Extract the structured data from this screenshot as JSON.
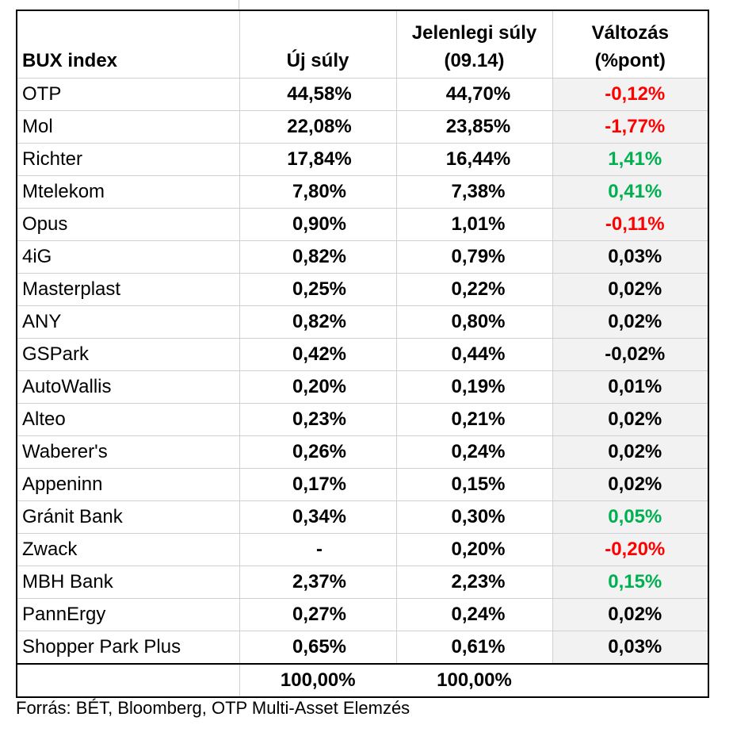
{
  "header": {
    "name": "BUX index",
    "new_weight": "Új súly",
    "current_weight_line1": "Jelenlegi súly",
    "current_weight_line2": "(09.14)",
    "change_line1": "Változás",
    "change_line2": "(%pont)"
  },
  "rows": [
    {
      "name": "OTP",
      "new": "44,58%",
      "current": "44,70%",
      "change": "-0,12%",
      "change_color": "#ff0000"
    },
    {
      "name": "Mol",
      "new": "22,08%",
      "current": "23,85%",
      "change": "-1,77%",
      "change_color": "#ff0000"
    },
    {
      "name": "Richter",
      "new": "17,84%",
      "current": "16,44%",
      "change": "1,41%",
      "change_color": "#00b050"
    },
    {
      "name": "Mtelekom",
      "new": "7,80%",
      "current": "7,38%",
      "change": "0,41%",
      "change_color": "#00b050"
    },
    {
      "name": "Opus",
      "new": "0,90%",
      "current": "1,01%",
      "change": "-0,11%",
      "change_color": "#ff0000"
    },
    {
      "name": "4iG",
      "new": "0,82%",
      "current": "0,79%",
      "change": "0,03%",
      "change_color": "#000000"
    },
    {
      "name": "Masterplast",
      "new": "0,25%",
      "current": "0,22%",
      "change": "0,02%",
      "change_color": "#000000"
    },
    {
      "name": "ANY",
      "new": "0,82%",
      "current": "0,80%",
      "change": "0,02%",
      "change_color": "#000000"
    },
    {
      "name": "GSPark",
      "new": "0,42%",
      "current": "0,44%",
      "change": "-0,02%",
      "change_color": "#000000"
    },
    {
      "name": "AutoWallis",
      "new": "0,20%",
      "current": "0,19%",
      "change": "0,01%",
      "change_color": "#000000"
    },
    {
      "name": "Alteo",
      "new": "0,23%",
      "current": "0,21%",
      "change": "0,02%",
      "change_color": "#000000"
    },
    {
      "name": "Waberer's",
      "new": "0,26%",
      "current": "0,24%",
      "change": "0,02%",
      "change_color": "#000000"
    },
    {
      "name": "Appeninn",
      "new": "0,17%",
      "current": "0,15%",
      "change": "0,02%",
      "change_color": "#000000"
    },
    {
      "name": "Gránit Bank",
      "new": "0,34%",
      "current": "0,30%",
      "change": "0,05%",
      "change_color": "#00b050"
    },
    {
      "name": "Zwack",
      "new": "-",
      "current": "0,20%",
      "change": "-0,20%",
      "change_color": "#ff0000"
    },
    {
      "name": "MBH Bank",
      "new": "2,37%",
      "current": "2,23%",
      "change": "0,15%",
      "change_color": "#00b050"
    },
    {
      "name": "PannErgy",
      "new": "0,27%",
      "current": "0,24%",
      "change": "0,02%",
      "change_color": "#000000"
    },
    {
      "name": "Shopper Park Plus",
      "new": "0,65%",
      "current": "0,61%",
      "change": "0,03%",
      "change_color": "#000000"
    }
  ],
  "totals": {
    "new": "100,00%",
    "current": "100,00%"
  },
  "source": "Forrás: BÉT, Bloomberg, OTP Multi-Asset Elemzés"
}
